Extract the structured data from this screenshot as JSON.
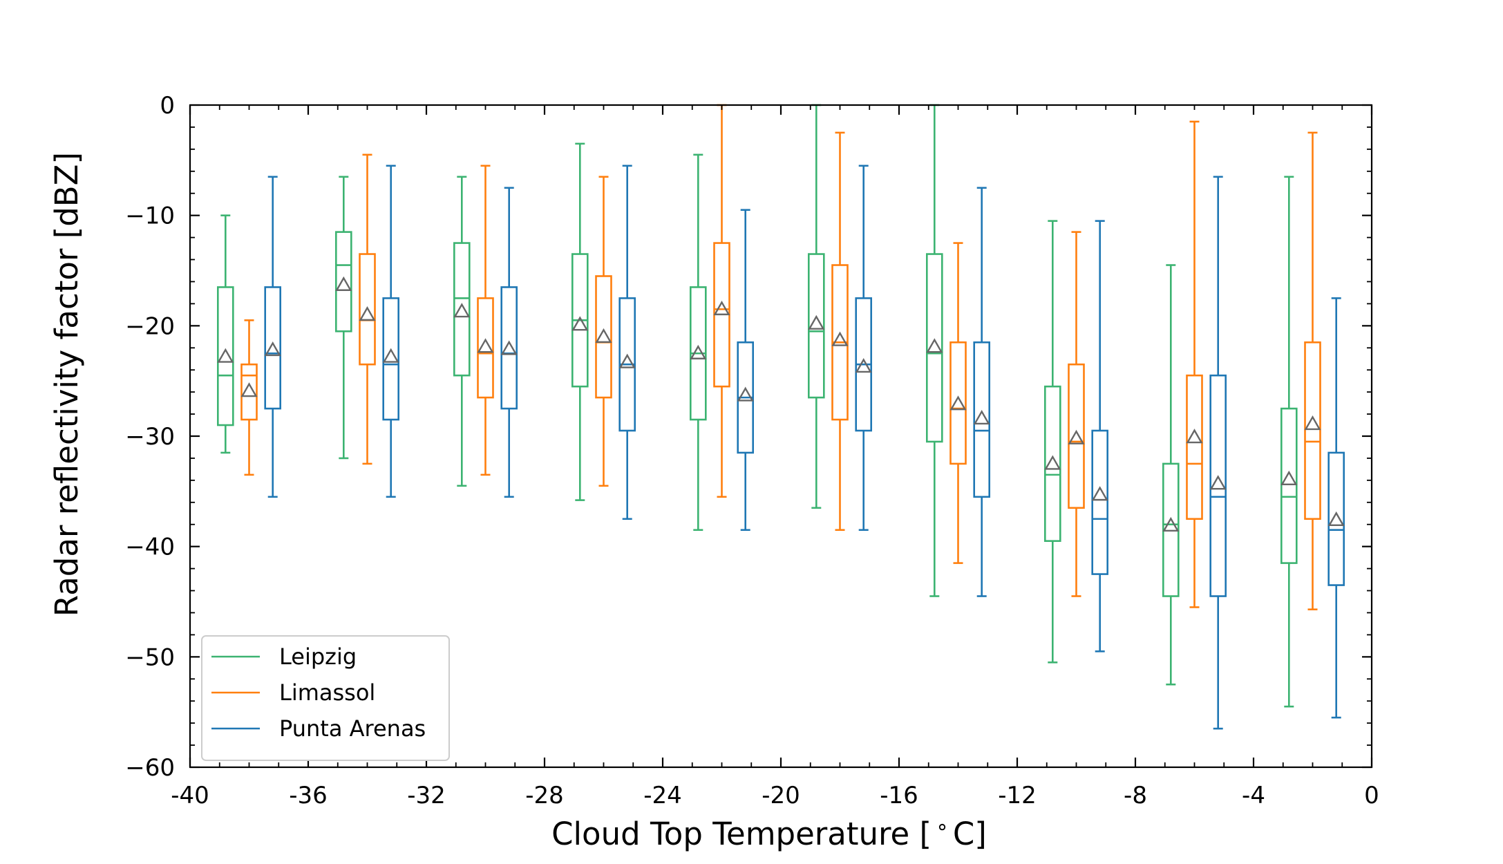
{
  "chart_data": {
    "type": "box",
    "xlabel": "Cloud Top Temperature [$^\\circ$C]",
    "xlabel_parts": [
      "Cloud Top Temperature [",
      "∘",
      "C]"
    ],
    "ylabel": "Radar reflectivity factor [dBZ]",
    "xlim": [
      -40,
      0
    ],
    "ylim": [
      -60,
      0
    ],
    "x_ticks": [
      -40,
      -36,
      -32,
      -28,
      -24,
      -20,
      -16,
      -12,
      -8,
      -4,
      0
    ],
    "x_tick_labels": [
      "-40",
      "-36",
      "-32",
      "-28",
      "-24",
      "-20",
      "-16",
      "-12",
      "-8",
      "-4",
      "0"
    ],
    "y_ticks": [
      0,
      -10,
      -20,
      -30,
      -40,
      -50,
      -60
    ],
    "y_tick_labels": [
      "0",
      "−10",
      "−20",
      "−30",
      "−40",
      "−50",
      "−60"
    ],
    "grid": false,
    "legend_position": "lower-left",
    "mean_marker": "triangle",
    "mean_marker_color": "#666666",
    "series": [
      {
        "name": "Leipzig",
        "color": "#3cb371",
        "boxes": [
          {
            "x": -38.8,
            "whislo": -31.5,
            "q1": -29,
            "med": -24.5,
            "q3": -16.5,
            "whishi": -10,
            "mean": -22.8
          },
          {
            "x": -34.8,
            "whislo": -32,
            "q1": -20.5,
            "med": -14.5,
            "q3": -11.5,
            "whishi": -6.5,
            "mean": -16.3
          },
          {
            "x": -30.8,
            "whislo": -34.5,
            "q1": -24.5,
            "med": -17.5,
            "q3": -12.5,
            "whishi": -6.5,
            "mean": -18.7
          },
          {
            "x": -26.8,
            "whislo": -35.8,
            "q1": -25.5,
            "med": -19.5,
            "q3": -13.5,
            "whishi": -3.5,
            "mean": -19.9
          },
          {
            "x": -22.8,
            "whislo": -38.5,
            "q1": -28.5,
            "med": -22.5,
            "q3": -16.5,
            "whishi": -4.5,
            "mean": -22.5
          },
          {
            "x": -18.8,
            "whislo": -36.5,
            "q1": -26.5,
            "med": -20.5,
            "q3": -13.5,
            "whishi": 0,
            "mean": -19.8
          },
          {
            "x": -14.8,
            "whislo": -44.5,
            "q1": -30.5,
            "med": -22.5,
            "q3": -13.5,
            "whishi": 0,
            "mean": -21.9
          },
          {
            "x": -10.8,
            "whislo": -50.5,
            "q1": -39.5,
            "med": -33.5,
            "q3": -25.5,
            "whishi": -10.5,
            "mean": -32.5
          },
          {
            "x": -6.8,
            "whislo": -52.5,
            "q1": -44.5,
            "med": -38,
            "q3": -32.5,
            "whishi": -14.5,
            "mean": -38.1
          },
          {
            "x": -2.8,
            "whislo": -54.5,
            "q1": -41.5,
            "med": -35.5,
            "q3": -27.5,
            "whishi": -6.5,
            "mean": -33.9
          }
        ]
      },
      {
        "name": "Limassol",
        "color": "#ff7f0e",
        "boxes": [
          {
            "x": -38.0,
            "whislo": -33.5,
            "q1": -28.5,
            "med": -24.5,
            "q3": -23.5,
            "whishi": -19.5,
            "mean": -25.9
          },
          {
            "x": -34.0,
            "whislo": -32.5,
            "q1": -23.5,
            "med": -19.5,
            "q3": -13.5,
            "whishi": -4.5,
            "mean": -19
          },
          {
            "x": -30.0,
            "whislo": -33.5,
            "q1": -26.5,
            "med": -22.5,
            "q3": -17.5,
            "whishi": -5.5,
            "mean": -21.9
          },
          {
            "x": -26.0,
            "whislo": -34.5,
            "q1": -26.5,
            "med": -21.5,
            "q3": -15.5,
            "whishi": -6.5,
            "mean": -21
          },
          {
            "x": -22.0,
            "whislo": -35.5,
            "q1": -25.5,
            "med": -18.5,
            "q3": -12.5,
            "whishi": 0,
            "mean": -18.5
          },
          {
            "x": -18.0,
            "whislo": -38.5,
            "q1": -28.5,
            "med": -21.5,
            "q3": -14.5,
            "whishi": -2.5,
            "mean": -21.3
          },
          {
            "x": -14.0,
            "whislo": -41.5,
            "q1": -32.5,
            "med": -27.5,
            "q3": -21.5,
            "whishi": -12.5,
            "mean": -27.1
          },
          {
            "x": -10.0,
            "whislo": -44.5,
            "q1": -36.5,
            "med": -30.5,
            "q3": -23.5,
            "whishi": -11.5,
            "mean": -30.2
          },
          {
            "x": -6.0,
            "whislo": -45.5,
            "q1": -37.5,
            "med": -32.5,
            "q3": -24.5,
            "whishi": -1.5,
            "mean": -30.1
          },
          {
            "x": -2.0,
            "whislo": -45.7,
            "q1": -37.5,
            "med": -30.5,
            "q3": -21.5,
            "whishi": -2.5,
            "mean": -28.9
          }
        ]
      },
      {
        "name": "Punta Arenas",
        "color": "#1f77b4",
        "boxes": [
          {
            "x": -37.2,
            "whislo": -35.5,
            "q1": -27.5,
            "med": -22.5,
            "q3": -16.5,
            "whishi": -6.5,
            "mean": -22.2
          },
          {
            "x": -33.2,
            "whislo": -35.5,
            "q1": -28.5,
            "med": -23.5,
            "q3": -17.5,
            "whishi": -5.5,
            "mean": -22.8
          },
          {
            "x": -29.2,
            "whislo": -35.5,
            "q1": -27.5,
            "med": -22.5,
            "q3": -16.5,
            "whishi": -7.5,
            "mean": -22.1
          },
          {
            "x": -25.2,
            "whislo": -37.5,
            "q1": -29.5,
            "med": -23.5,
            "q3": -17.5,
            "whishi": -5.5,
            "mean": -23.3
          },
          {
            "x": -21.2,
            "whislo": -38.5,
            "q1": -31.5,
            "med": -26.5,
            "q3": -21.5,
            "whishi": -9.5,
            "mean": -26.3
          },
          {
            "x": -17.2,
            "whislo": -38.5,
            "q1": -29.5,
            "med": -23.5,
            "q3": -17.5,
            "whishi": -5.5,
            "mean": -23.7
          },
          {
            "x": -13.2,
            "whislo": -44.5,
            "q1": -35.5,
            "med": -29.5,
            "q3": -21.5,
            "whishi": -7.5,
            "mean": -28.4
          },
          {
            "x": -9.2,
            "whislo": -49.5,
            "q1": -42.5,
            "med": -37.5,
            "q3": -29.5,
            "whishi": -10.5,
            "mean": -35.3
          },
          {
            "x": -5.2,
            "whislo": -56.5,
            "q1": -44.5,
            "med": -35.5,
            "q3": -24.5,
            "whishi": -6.5,
            "mean": -34.3
          },
          {
            "x": -1.2,
            "whislo": -55.5,
            "q1": -43.5,
            "med": -38.5,
            "q3": -31.5,
            "whishi": -17.5,
            "mean": -37.6
          }
        ]
      }
    ]
  }
}
